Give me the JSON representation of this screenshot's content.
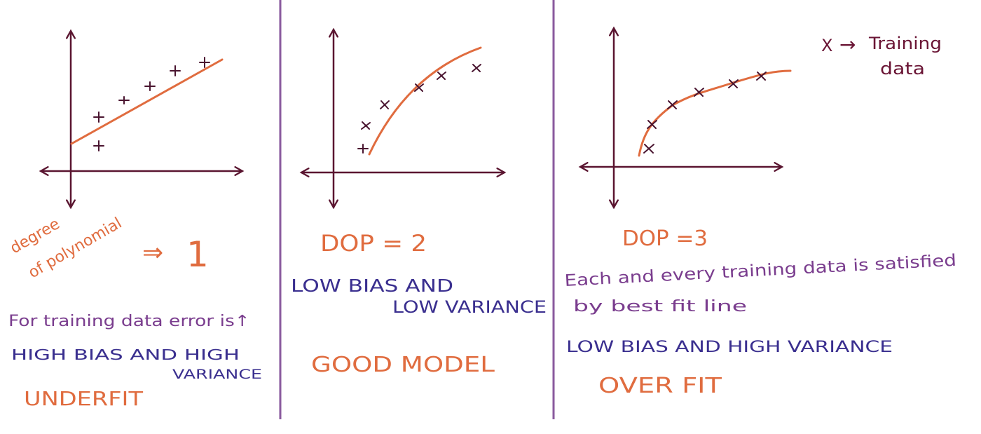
{
  "panels": [
    {
      "label_line1": "degree",
      "label_line2": "of polynomial",
      "arrow": "⇒",
      "degree_value": "1",
      "note": "For training data error is↑",
      "bias_variance_line1": "HIGH BIAS AND HIGH",
      "bias_variance_line2": "VARIANCE",
      "verdict": "UNDERFIT"
    },
    {
      "dop": "DOP = 2",
      "bias_variance_line1": "LOW BIAS AND",
      "bias_variance_line2": "LOW VARIANCE",
      "verdict": "GOOD MODEL"
    },
    {
      "dop": "DOP =3",
      "note_line1": "Each and every training data is satisfied",
      "note_line2": "by best fit line",
      "bias_variance": "LOW BIAS AND HIGH VARIANCE",
      "verdict": "OVER FIT"
    }
  ],
  "legend": {
    "marker": "X",
    "arrow": "→",
    "line1": "Training",
    "line2": "data"
  },
  "marker_glyphs": [
    "+",
    "x"
  ],
  "colors": {
    "axis": "#5a1530",
    "curve": "#e06c3f",
    "divider": "#8a5a9e",
    "marker": "#4a1530",
    "orange_text": "#e06c3f",
    "purple_text": "#7a3d8e",
    "blue_text": "#3a2f8f",
    "maroon_text": "#6a1535"
  }
}
